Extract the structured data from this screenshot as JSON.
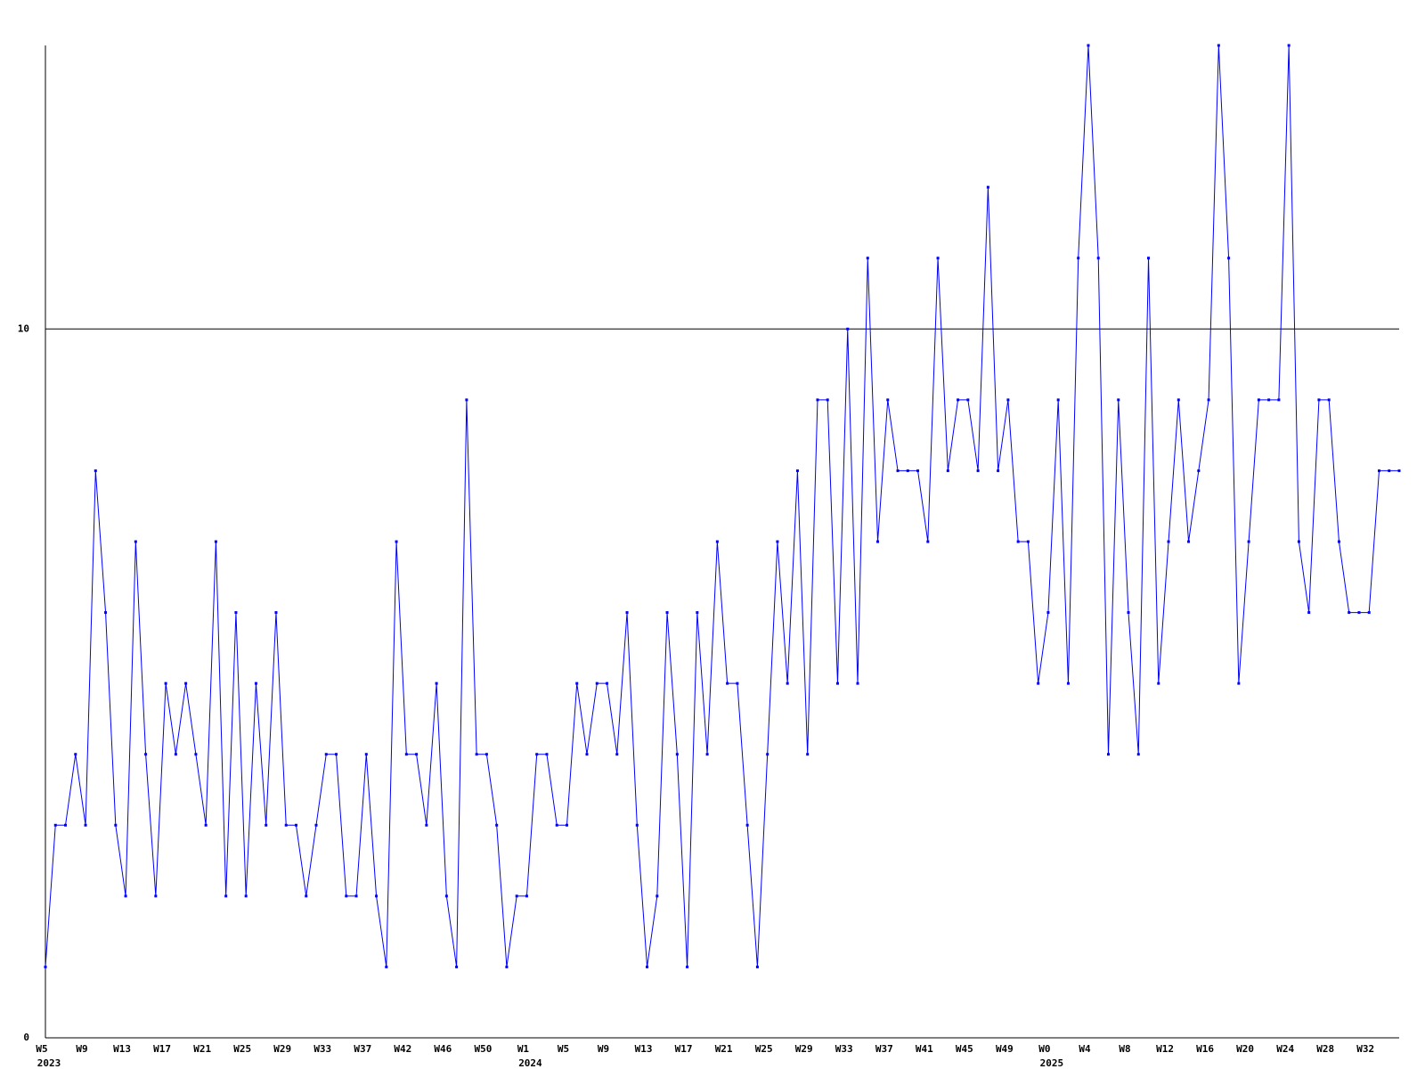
{
  "chart_data": {
    "type": "line",
    "categories": [
      "W5",
      null,
      null,
      null,
      "W9",
      null,
      null,
      null,
      "W13",
      null,
      null,
      null,
      "W17",
      null,
      null,
      null,
      "W21",
      null,
      null,
      null,
      "W25",
      null,
      null,
      null,
      "W29",
      null,
      null,
      null,
      "W33",
      null,
      null,
      null,
      "W37",
      null,
      null,
      null,
      "W42",
      null,
      null,
      null,
      "W46",
      null,
      null,
      null,
      "W50",
      null,
      null,
      null,
      "W1",
      null,
      null,
      null,
      "W5",
      null,
      null,
      null,
      "W9",
      null,
      null,
      null,
      "W13",
      null,
      null,
      null,
      "W17",
      null,
      null,
      null,
      "W21",
      null,
      null,
      null,
      "W25",
      null,
      null,
      null,
      "W29",
      null,
      null,
      null,
      "W33",
      null,
      null,
      null,
      "W37",
      null,
      null,
      null,
      "W41",
      null,
      null,
      null,
      "W45",
      null,
      null,
      null,
      "W49",
      null,
      null,
      null,
      "W0",
      null,
      null,
      null,
      "W4",
      null,
      null,
      null,
      "W8",
      null,
      null,
      null,
      "W12",
      null,
      null,
      null,
      "W16",
      null,
      null,
      null,
      "W20",
      null,
      null,
      null,
      "W24",
      null,
      null,
      null,
      "W28",
      null,
      null,
      null,
      "W32",
      null,
      null,
      null
    ],
    "x_sublabels": [
      "2023",
      null,
      null,
      null,
      null,
      null,
      null,
      null,
      null,
      null,
      null,
      null,
      null,
      null,
      null,
      null,
      null,
      null,
      null,
      null,
      null,
      null,
      null,
      null,
      null,
      null,
      null,
      null,
      null,
      null,
      null,
      null,
      null,
      null,
      null,
      null,
      null,
      null,
      null,
      null,
      null,
      null,
      null,
      null,
      null,
      null,
      null,
      null,
      "2024",
      null,
      null,
      null,
      null,
      null,
      null,
      null,
      null,
      null,
      null,
      null,
      null,
      null,
      null,
      null,
      null,
      null,
      null,
      null,
      null,
      null,
      null,
      null,
      null,
      null,
      null,
      null,
      null,
      null,
      null,
      null,
      null,
      null,
      null,
      null,
      null,
      null,
      null,
      null,
      null,
      null,
      null,
      null,
      null,
      null,
      null,
      null,
      null,
      null,
      null,
      null,
      "2025",
      null,
      null,
      null,
      null,
      null,
      null,
      null,
      null,
      null,
      null,
      null,
      null,
      null,
      null,
      null,
      null,
      null,
      null,
      null,
      null,
      null,
      null,
      null,
      null,
      null,
      null,
      null,
      null,
      null,
      null,
      null,
      null,
      null,
      null,
      null
    ],
    "values": [
      1,
      3,
      3,
      4,
      3,
      8,
      6,
      3,
      2,
      7,
      4,
      2,
      5,
      4,
      5,
      4,
      3,
      7,
      2,
      6,
      2,
      5,
      3,
      6,
      3,
      3,
      2,
      3,
      4,
      4,
      2,
      2,
      4,
      2,
      1,
      7,
      4,
      4,
      3,
      5,
      2,
      1,
      9,
      4,
      4,
      3,
      1,
      2,
      2,
      4,
      4,
      3,
      3,
      5,
      4,
      5,
      5,
      4,
      6,
      3,
      1,
      2,
      6,
      4,
      1,
      6,
      4,
      7,
      5,
      5,
      3,
      1,
      4,
      7,
      5,
      8,
      4,
      9,
      9,
      5,
      10,
      5,
      11,
      7,
      9,
      8,
      8,
      8,
      7,
      11,
      8,
      9,
      9,
      8,
      12,
      8,
      9,
      7,
      7,
      5,
      6,
      9,
      5,
      11,
      14,
      11,
      4,
      9,
      6,
      4,
      11,
      5,
      7,
      9,
      7,
      8,
      9,
      14,
      11,
      5,
      7,
      9,
      9,
      9,
      14,
      7,
      6,
      9,
      9,
      7,
      6,
      6,
      6,
      8,
      8,
      8
    ],
    "color": "#0000ff",
    "ylim": [
      0,
      14
    ],
    "yticks": [
      0,
      10
    ],
    "grid": true
  }
}
